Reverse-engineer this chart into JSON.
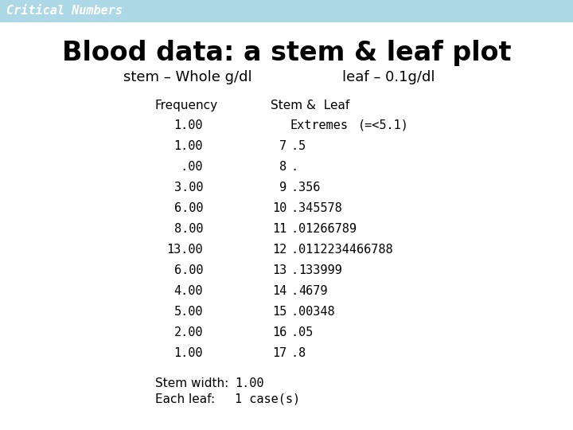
{
  "fig_width": 7.2,
  "fig_height": 5.4,
  "bg_color": "#ffffff",
  "header_bg": "#add8e6",
  "header_text": "Critical Numbers",
  "header_text_color": "#ffffff",
  "title": "Blood data: a stem & leaf plot",
  "subtitle_left": "stem – Whole g/dl",
  "subtitle_right": "leaf – 0.1g/dl",
  "col_header_freq": "Frequency",
  "col_header_stem": "Stem &  Leaf",
  "rows": [
    {
      "freq": "1.00",
      "stem": "Extremes",
      "dot": " ",
      "leaf": "(=<5.1)"
    },
    {
      "freq": "1.00",
      "stem": "7",
      "dot": ".",
      "leaf": "5"
    },
    {
      "freq": " .00",
      "stem": "8",
      "dot": ".",
      "leaf": ""
    },
    {
      "freq": "3.00",
      "stem": "9",
      "dot": ".",
      "leaf": "356"
    },
    {
      "freq": "6.00",
      "stem": "10",
      "dot": ".",
      "leaf": "345578"
    },
    {
      "freq": "8.00",
      "stem": "11",
      "dot": ".",
      "leaf": "01266789"
    },
    {
      "freq": "13.00",
      "stem": "12",
      "dot": ".",
      "leaf": "0112234466788"
    },
    {
      "freq": "6.00",
      "stem": "13",
      "dot": ".",
      "leaf": "133999"
    },
    {
      "freq": "4.00",
      "stem": "14",
      "dot": ".",
      "leaf": "4679"
    },
    {
      "freq": "5.00",
      "stem": "15",
      "dot": ".",
      "leaf": "00348"
    },
    {
      "freq": "2.00",
      "stem": "16",
      "dot": ".",
      "leaf": "05"
    },
    {
      "freq": "1.00",
      "stem": "17",
      "dot": ".",
      "leaf": "8"
    }
  ],
  "footer1_label": "Stem width:",
  "footer1_value": "1.00",
  "footer2_label": "Each leaf:",
  "footer2_value": "1 case(s)",
  "header_font_size": 11,
  "title_font_size": 24,
  "subtitle_font_size": 13,
  "col_header_font_size": 11,
  "data_font_size": 11,
  "footer_font_size": 11
}
